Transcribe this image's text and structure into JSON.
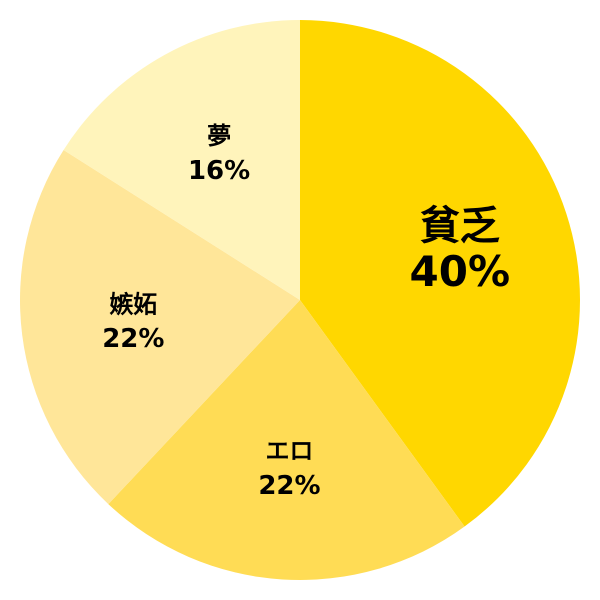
{
  "chart_data": {
    "type": "pie",
    "start": "top",
    "direction": "clockwise",
    "slices": [
      {
        "label": "貧乏",
        "value": 40,
        "value_label": "40%",
        "color": "#FFD700",
        "emphasis": true
      },
      {
        "label": "エロ",
        "value": 22,
        "value_label": "22%",
        "color": "#FFDC55"
      },
      {
        "label": "嫉妬",
        "value": 22,
        "value_label": "22%",
        "color": "#FFE699"
      },
      {
        "label": "夢",
        "value": 16,
        "value_label": "16%",
        "color": "#FFF4BB"
      }
    ]
  }
}
